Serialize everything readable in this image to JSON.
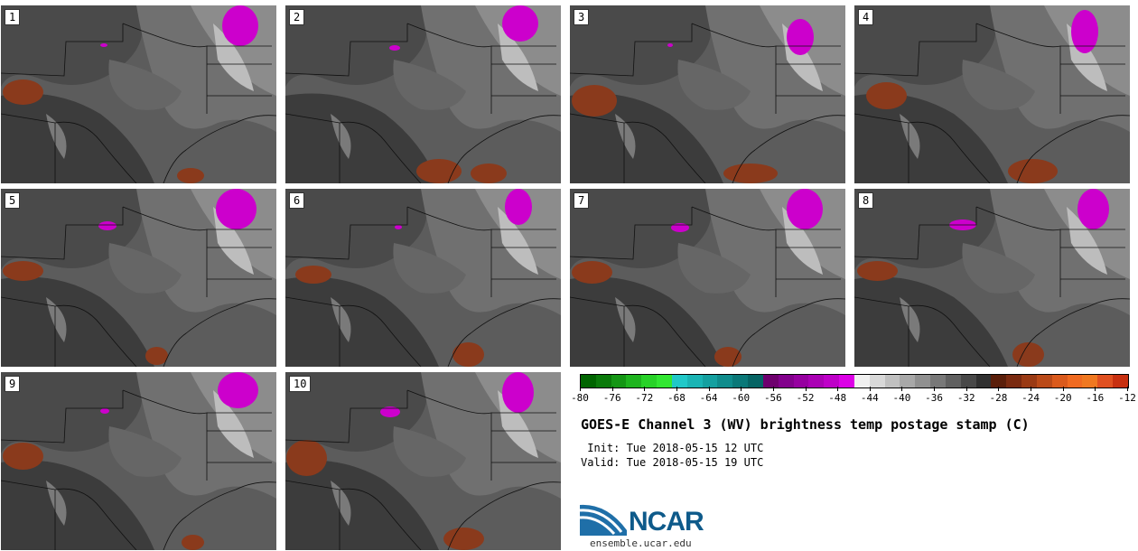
{
  "panels": [
    {
      "label": "1"
    },
    {
      "label": "2"
    },
    {
      "label": "3"
    },
    {
      "label": "4"
    },
    {
      "label": "5"
    },
    {
      "label": "6"
    },
    {
      "label": "7"
    },
    {
      "label": "8"
    },
    {
      "label": "9"
    },
    {
      "label": "10"
    }
  ],
  "colorbar": {
    "colors": [
      "#006400",
      "#0a7a0a",
      "#149614",
      "#1eb41e",
      "#28d228",
      "#32e632",
      "#20c8c8",
      "#1ab4b4",
      "#14a0a0",
      "#0f8c8c",
      "#0a7878",
      "#066464",
      "#6e006e",
      "#82008c",
      "#9600a0",
      "#aa00b4",
      "#be00c8",
      "#dc00e6",
      "#f0f0f0",
      "#d8d8d8",
      "#c0c0c0",
      "#a8a8a8",
      "#909090",
      "#787878",
      "#606060",
      "#484848",
      "#303030",
      "#5a1e0a",
      "#7a2a10",
      "#9a3a14",
      "#ba4a18",
      "#da5a1c",
      "#f06a20",
      "#f07820",
      "#e05020",
      "#c83010"
    ],
    "ticks": [
      "-80",
      "-76",
      "-72",
      "-68",
      "-64",
      "-60",
      "-56",
      "-52",
      "-48",
      "-44",
      "-40",
      "-36",
      "-32",
      "-28",
      "-24",
      "-20",
      "-16",
      "-12"
    ]
  },
  "title": "GOES-E Channel 3 (WV) brightness temp postage stamp (C)",
  "init": " Init: Tue 2018-05-15 12 UTC",
  "valid": "Valid: Tue 2018-05-15 19 UTC",
  "logo": {
    "text": "NCAR",
    "url": "ensemble.ucar.edu"
  }
}
